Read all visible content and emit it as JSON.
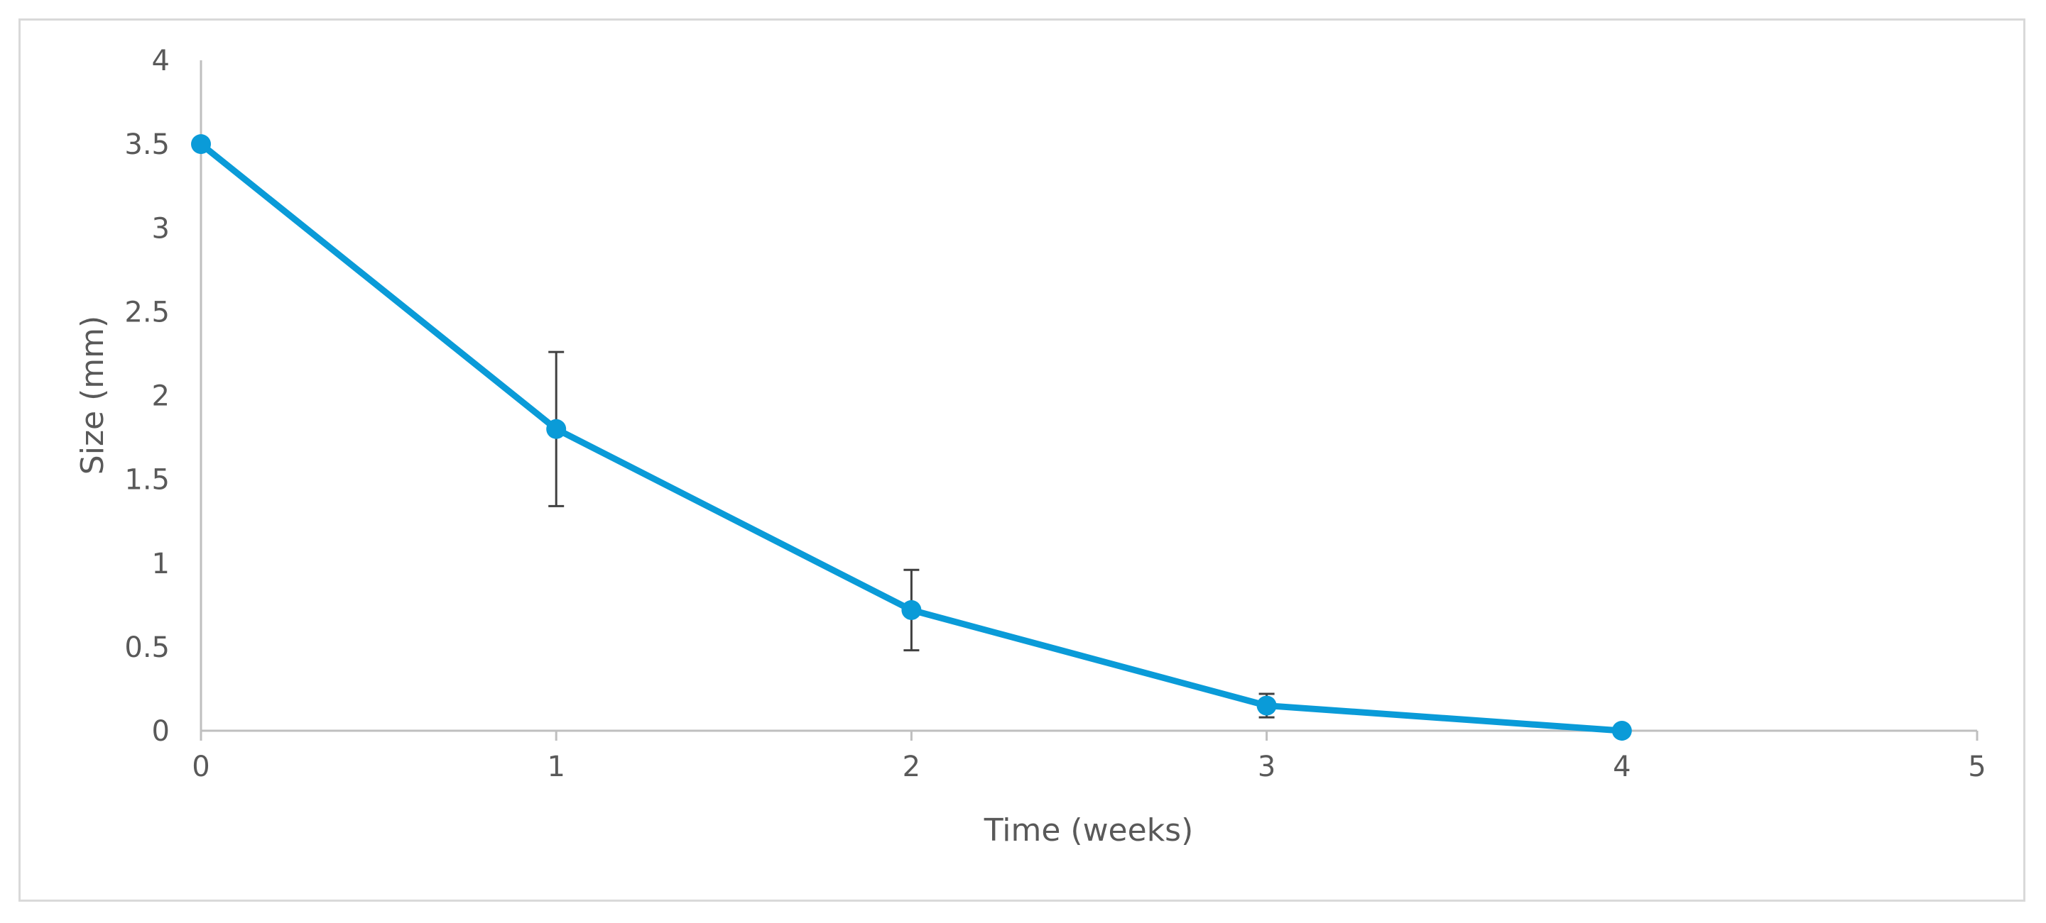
{
  "chart_data": {
    "type": "line",
    "xlabel": "Time (weeks)",
    "ylabel": "Size (mm)",
    "xlim": [
      0,
      5
    ],
    "ylim": [
      0,
      4
    ],
    "x_ticks": [
      "0",
      "1",
      "2",
      "3",
      "4",
      "5"
    ],
    "y_ticks": [
      "0",
      "0.5",
      "1",
      "1.5",
      "2",
      "2.5",
      "3",
      "3.5",
      "4"
    ],
    "grid": false,
    "legend": "none",
    "series": [
      {
        "x": [
          0,
          1,
          2,
          3,
          4
        ],
        "y": [
          3.5,
          1.8,
          0.72,
          0.15,
          0.0
        ],
        "error": [
          0,
          0.46,
          0.24,
          0.07,
          0
        ],
        "color": "#0a9bd8"
      }
    ],
    "colors": {
      "axis": "#bfbfbf",
      "error_bar": "#404040",
      "frame": "#d9d9d9"
    }
  }
}
